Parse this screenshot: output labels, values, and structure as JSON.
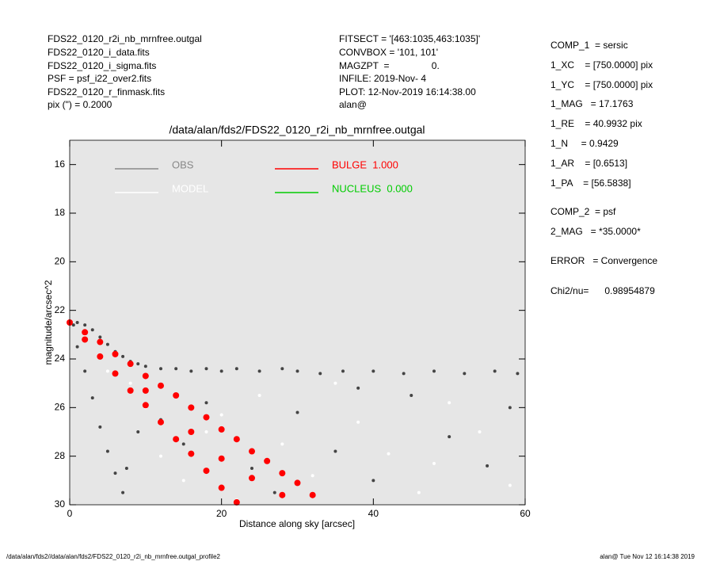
{
  "header": {
    "left": [
      "FDS22_0120_r2i_nb_mrnfree.outgal",
      "FDS22_0120_i_data.fits",
      "FDS22_0120_i_sigma.fits",
      "PSF     = psf_i22_over2.fits",
      "FDS22_0120_r_finmask.fits",
      "pix (\") =  0.2000"
    ],
    "middle": [
      "FITSECT = '[463:1035,463:1035]'",
      "CONVBOX = '101, 101'",
      "MAGZPT  =                0.",
      "INFILE: 2019-Nov- 4",
      "PLOT: 12-Nov-2019 16:14:38.00",
      "alan@"
    ],
    "right": [
      "COMP_1  = sersic",
      "1_XC    = [750.0000] pix",
      "1_YC    = [750.0000] pix",
      "1_MAG   = 17.1763",
      "1_RE    = 40.9932 pix",
      "1_N     = 0.9429",
      "1_AR    = [0.6513]",
      "1_PA    = [56.5838]",
      "COMP_2  = psf",
      "2_MAG   = *35.0000*",
      "ERROR   = Convergence",
      "Chi2/nu=      0.98954879"
    ]
  },
  "footer": {
    "left": "/data/alan/fds2//data/alan/fds2/FDS22_0120_r2i_nb_mrnfree.outgal_profile2",
    "right": "alan@  Tue Nov 12 16:14:38 2019"
  },
  "chart_data": {
    "type": "scatter",
    "title": "/data/alan/fds2/FDS22_0120_r2i_nb_mrnfree.outgal",
    "x_label": "Distance along sky [arcsec]",
    "y_label": "magnitude/arcsec^2",
    "xlim": [
      0,
      60
    ],
    "xticks": [
      0,
      20,
      40,
      60
    ],
    "ylim": [
      30,
      15
    ],
    "yticks": [
      16,
      18,
      20,
      22,
      24,
      26,
      28,
      30
    ],
    "background": "#e6e6e6",
    "series": [
      {
        "name": "OBS",
        "color": "#444444",
        "legend_color": "#888888",
        "x": [
          0.5,
          1,
          2,
          3,
          4,
          5,
          6,
          7,
          8,
          9,
          10,
          12,
          14,
          16,
          18,
          20,
          22,
          25,
          28,
          30,
          33,
          36,
          40,
          44,
          48,
          52,
          56,
          59,
          1,
          2,
          3,
          4,
          5,
          6,
          7,
          7.5,
          9,
          12,
          15,
          18,
          24,
          30,
          35,
          40,
          45,
          50,
          55,
          58,
          38,
          27
        ],
        "values": [
          22.6,
          22.5,
          22.6,
          22.8,
          23.1,
          23.4,
          23.7,
          23.9,
          24.1,
          24.2,
          24.3,
          24.4,
          24.4,
          24.5,
          24.4,
          24.5,
          24.4,
          24.5,
          24.4,
          24.5,
          24.6,
          24.5,
          24.5,
          24.6,
          24.5,
          24.6,
          24.5,
          24.6,
          23.5,
          24.5,
          25.6,
          26.8,
          27.8,
          28.7,
          29.5,
          28.5,
          27.0,
          26.5,
          27.5,
          25.8,
          28.5,
          26.2,
          27.8,
          29.0,
          25.5,
          27.2,
          28.4,
          26.0,
          25.2,
          29.5
        ]
      },
      {
        "name": "MODEL",
        "color": "#ffffff",
        "legend_color": "#ffffff",
        "x": [
          2,
          5,
          8,
          10,
          12,
          15,
          18,
          20,
          25,
          28,
          32,
          38,
          42,
          46,
          50,
          54,
          58,
          35,
          22,
          48
        ],
        "values": [
          23.0,
          24.5,
          25.0,
          26.0,
          28.0,
          29.0,
          27.0,
          26.3,
          25.5,
          27.5,
          28.8,
          26.6,
          27.9,
          29.5,
          25.8,
          27.0,
          29.2,
          25.0,
          29.8,
          28.3
        ]
      },
      {
        "name": "BULGE  1.000",
        "color": "#ff0000",
        "legend_color": "#ff0000",
        "x": [
          0,
          2,
          2,
          4,
          4,
          6,
          6,
          8,
          8,
          10,
          10,
          10,
          12,
          12,
          14,
          14,
          16,
          16,
          16,
          18,
          18,
          20,
          20,
          20,
          22,
          22,
          24,
          24,
          26,
          28,
          28,
          30,
          32
        ],
        "values": [
          22.5,
          22.9,
          23.2,
          23.3,
          23.9,
          23.8,
          24.6,
          24.2,
          25.3,
          24.7,
          25.3,
          25.9,
          25.1,
          26.6,
          25.5,
          27.3,
          26.0,
          27.0,
          27.9,
          26.4,
          28.6,
          26.9,
          28.1,
          29.3,
          27.3,
          29.9,
          27.8,
          28.9,
          28.2,
          28.7,
          29.6,
          29.1,
          29.6
        ]
      },
      {
        "name": "NUCLEUS  0.000",
        "color": "#00cc00",
        "legend_color": "#00cc00",
        "x": [],
        "values": []
      }
    ]
  }
}
